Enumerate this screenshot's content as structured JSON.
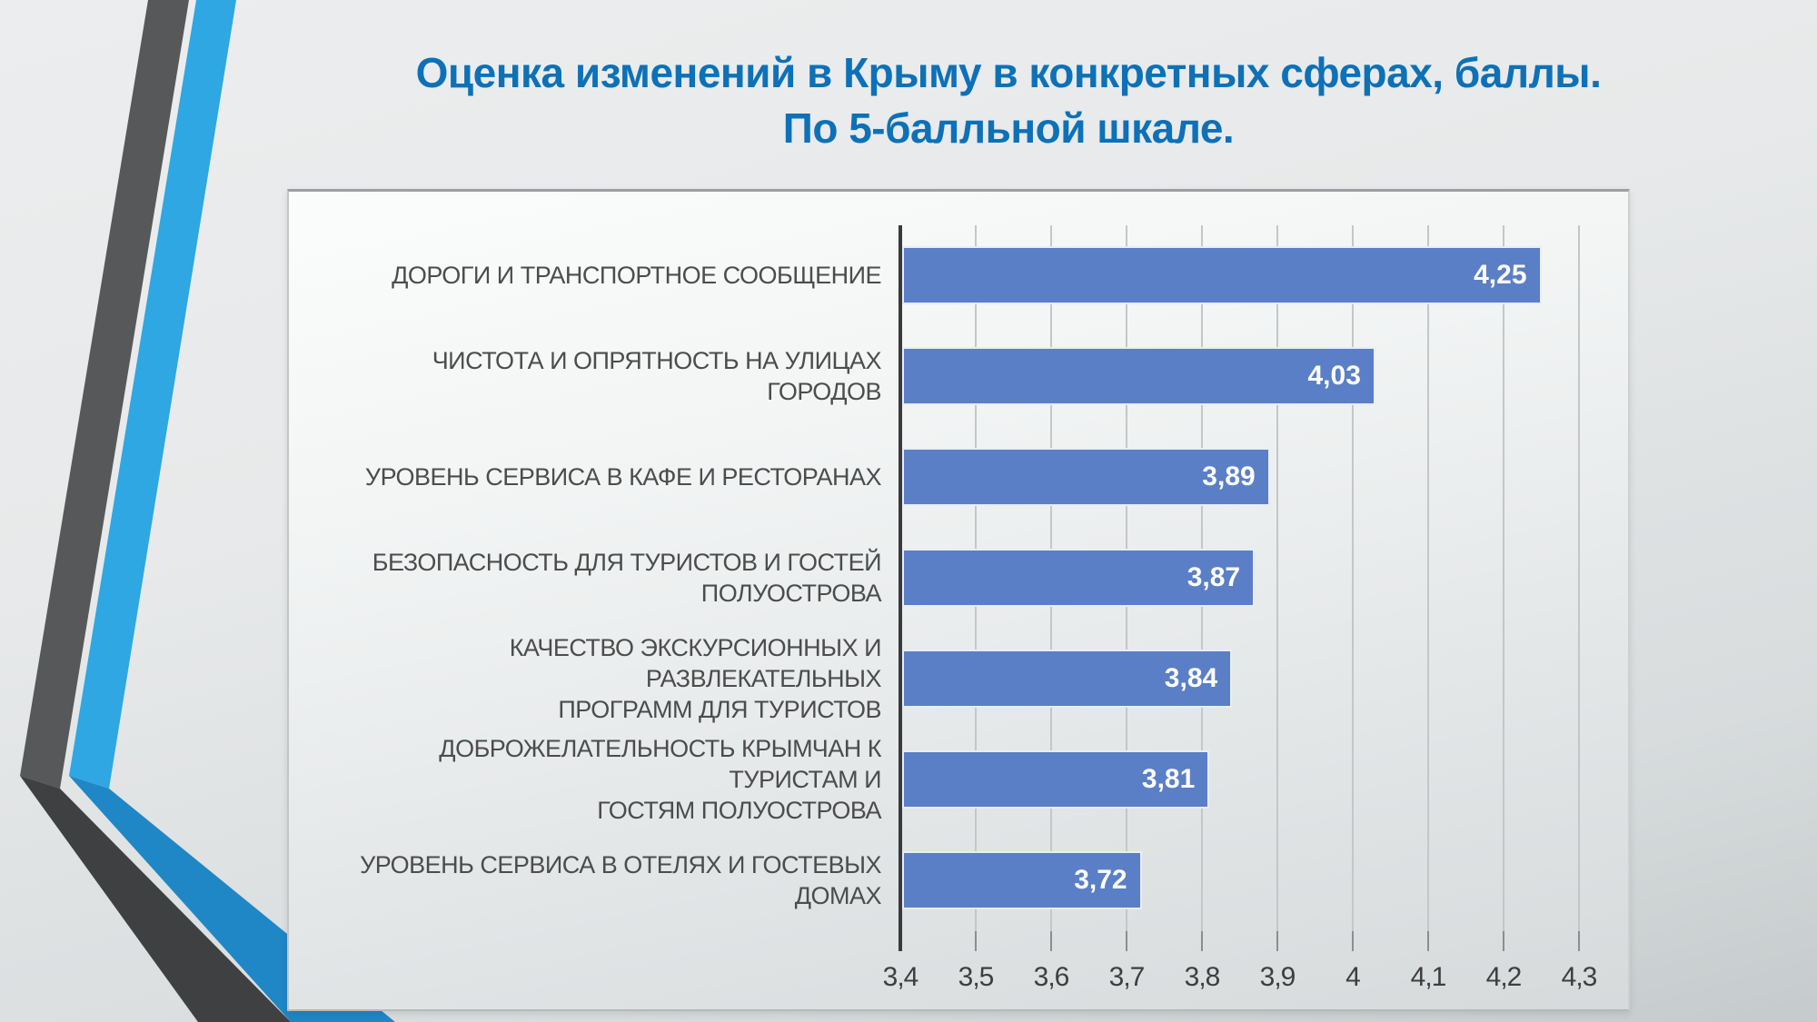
{
  "slide": {
    "title": {
      "line1": "Оценка изменений в Крыму в конкретных сферах, баллы.",
      "line2": "По 5-балльной шкале.",
      "color": "#0d71b8"
    },
    "decoration": {
      "stripe_gray_upper_color": "#56585a",
      "stripe_gray_lower_color": "#3e4042",
      "stripe_blue_upper_color": "#2ea7e2",
      "stripe_blue_lower_color": "#1f87c5"
    }
  },
  "chart_data": {
    "type": "bar",
    "orientation": "horizontal",
    "title": "Оценка изменений в Крыму в конкретных сферах, баллы. По 5-балльной шкале.",
    "categories": [
      "ДОРОГИ И ТРАНСПОРТНОЕ СООБЩЕНИЕ",
      "ЧИСТОТА И ОПРЯТНОСТЬ НА УЛИЦАХ ГОРОДОВ",
      "УРОВЕНЬ СЕРВИСА В КАФЕ И РЕСТОРАНАХ",
      "БЕЗОПАСНОСТЬ ДЛЯ ТУРИСТОВ И ГОСТЕЙ\nПОЛУОСТРОВА",
      "КАЧЕСТВО ЭКСКУРСИОННЫХ И РАЗВЛЕКАТЕЛЬНЫХ\nПРОГРАММ ДЛЯ ТУРИСТОВ",
      "ДОБРОЖЕЛАТЕЛЬНОСТЬ КРЫМЧАН К ТУРИСТАМ И\nГОСТЯМ ПОЛУОСТРОВА",
      "УРОВЕНЬ СЕРВИСА В ОТЕЛЯХ И ГОСТЕВЫХ ДОМАХ"
    ],
    "values": [
      4.25,
      4.03,
      3.89,
      3.87,
      3.84,
      3.81,
      3.72
    ],
    "value_labels": [
      "4,25",
      "4,03",
      "3,89",
      "3,87",
      "3,84",
      "3,81",
      "3,72"
    ],
    "xlim": [
      3.4,
      4.3
    ],
    "x_ticks": [
      "3,4",
      "3,5",
      "3,6",
      "3,7",
      "3,8",
      "3,9",
      "4",
      "4,1",
      "4,2",
      "4,3"
    ],
    "x_tick_values": [
      3.4,
      3.5,
      3.6,
      3.7,
      3.8,
      3.9,
      4.0,
      4.1,
      4.2,
      4.3
    ],
    "grid": true,
    "legend": false,
    "bar_color": "#5a7fc6",
    "bar_border_color": "#e8edf6",
    "value_label_color": "#ffffff",
    "category_label_color": "#4c4c4c",
    "tick_label_color": "#3e3e3e",
    "gridline_color": "#c3c7c9",
    "axis_line_color": "#3a3a3c",
    "tick_mark_color": "#8b8e90"
  }
}
